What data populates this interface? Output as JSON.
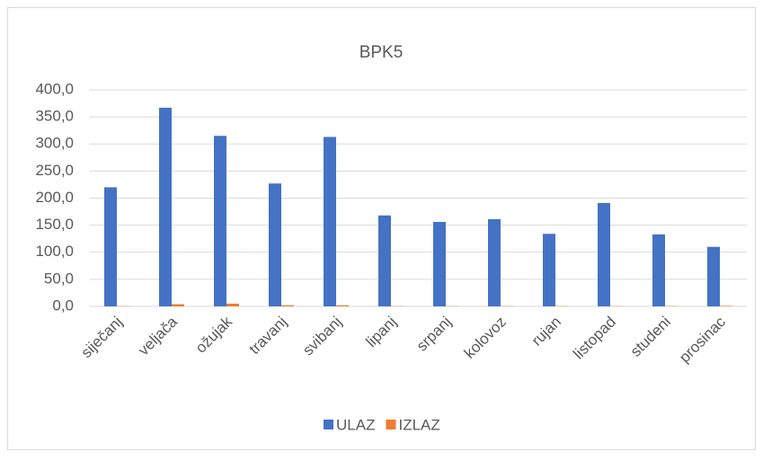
{
  "chart_data": {
    "type": "bar",
    "title": "BPK5",
    "categories": [
      "siječanj",
      "veljača",
      "ožujak",
      "travanj",
      "svibanj",
      "lipanj",
      "srpanj",
      "kolovoz",
      "rujan",
      "listopad",
      "studeni",
      "prosinac"
    ],
    "series": [
      {
        "name": "ULAZ",
        "color": "#4472c4",
        "values": [
          220,
          367,
          315,
          227,
          313,
          168,
          156,
          161,
          134,
          191,
          133,
          110
        ]
      },
      {
        "name": "IZLAZ",
        "color": "#ed7d31",
        "values": [
          0.5,
          4,
          5,
          2,
          2,
          0.5,
          0.5,
          0.5,
          0.5,
          0.5,
          0.5,
          1
        ]
      }
    ],
    "ylim": [
      0,
      400
    ],
    "yticks": [
      {
        "value": 0,
        "label": "0,0"
      },
      {
        "value": 50,
        "label": "50,0"
      },
      {
        "value": 100,
        "label": "100,0"
      },
      {
        "value": 150,
        "label": "150,0"
      },
      {
        "value": 200,
        "label": "200,0"
      },
      {
        "value": 250,
        "label": "250,0"
      },
      {
        "value": 300,
        "label": "300,0"
      },
      {
        "value": 350,
        "label": "350,0"
      },
      {
        "value": 400,
        "label": "400,0"
      }
    ],
    "grid": true,
    "legend": "bottom"
  }
}
